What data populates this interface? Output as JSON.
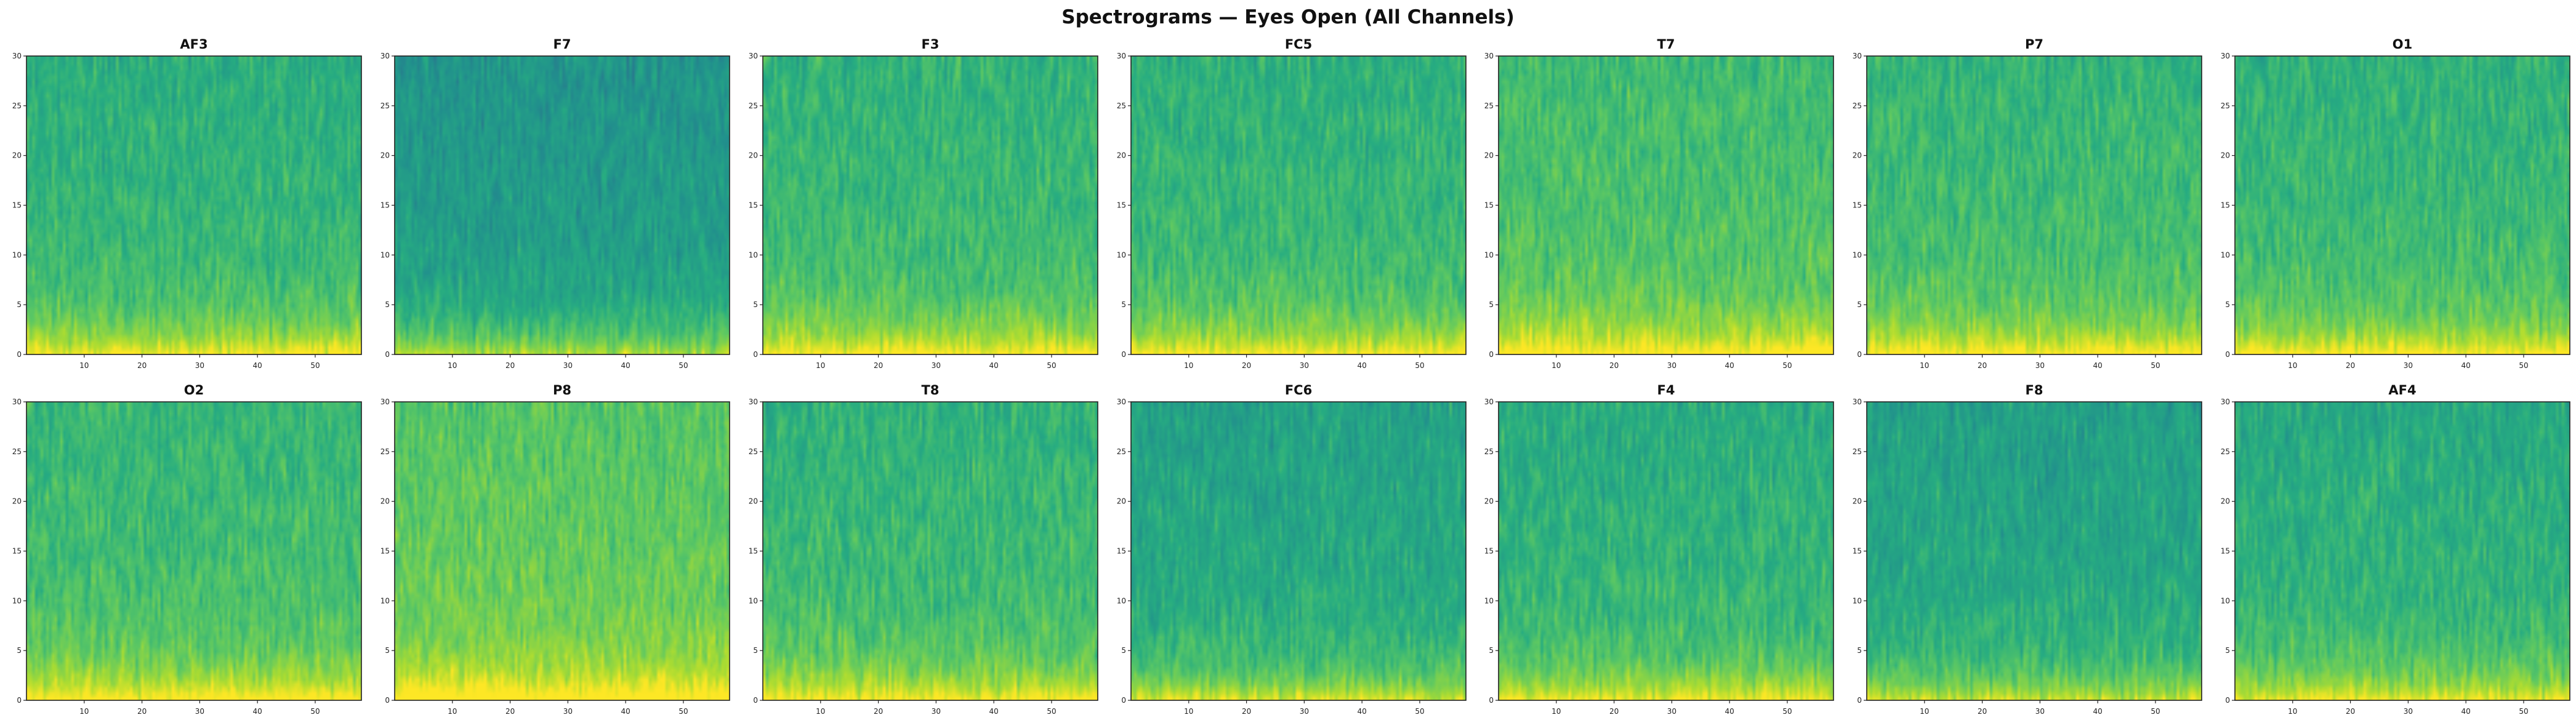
{
  "title": "Spectrograms — Eyes Open (All Channels)",
  "chart_data": {
    "type": "heatmap",
    "layout": {
      "rows": 2,
      "cols": 7
    },
    "colormap": "viridis",
    "xlim": [
      0,
      58
    ],
    "ylim": [
      0,
      30
    ],
    "xticks": [
      "10",
      "20",
      "30",
      "40",
      "50"
    ],
    "yticks": [
      "0",
      "5",
      "10",
      "15",
      "20",
      "25",
      "30"
    ],
    "xlabel": "",
    "ylabel": "",
    "panels": [
      {
        "name": "AF3",
        "level": 0.64
      },
      {
        "name": "F7",
        "level": 0.52
      },
      {
        "name": "F3",
        "level": 0.66
      },
      {
        "name": "FC5",
        "level": 0.65
      },
      {
        "name": "T7",
        "level": 0.7
      },
      {
        "name": "P7",
        "level": 0.67
      },
      {
        "name": "O1",
        "level": 0.66
      },
      {
        "name": "O2",
        "level": 0.68
      },
      {
        "name": "P8",
        "level": 0.75
      },
      {
        "name": "T8",
        "level": 0.66
      },
      {
        "name": "FC6",
        "level": 0.58
      },
      {
        "name": "F4",
        "level": 0.63
      },
      {
        "name": "F8",
        "level": 0.57
      },
      {
        "name": "AF4",
        "level": 0.62
      }
    ]
  }
}
